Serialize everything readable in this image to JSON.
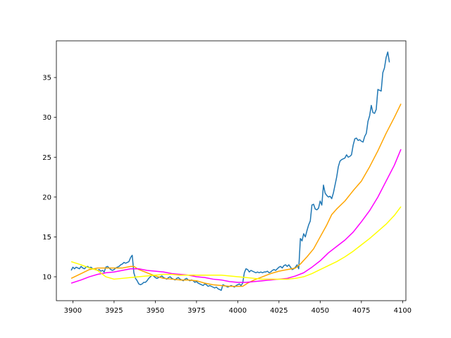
{
  "chart_data": {
    "type": "line",
    "title": "",
    "xlabel": "",
    "ylabel": "",
    "xlim": [
      3890,
      4102
    ],
    "ylim": [
      7,
      39.6
    ],
    "grid": false,
    "legend": "none",
    "x_ticks": [
      3900,
      3925,
      3950,
      3975,
      4000,
      4025,
      4050,
      4075,
      4100
    ],
    "y_ticks": [
      10,
      15,
      20,
      25,
      30,
      35
    ],
    "series": [
      {
        "color": "#1f77b4",
        "points": [
          [
            3899,
            10.8
          ],
          [
            3900,
            11.2
          ],
          [
            3901,
            11.0
          ],
          [
            3902,
            11.2
          ],
          [
            3903,
            11.1
          ],
          [
            3904,
            11.0
          ],
          [
            3905,
            11.3
          ],
          [
            3906,
            11.1
          ],
          [
            3907,
            11.0
          ],
          [
            3908,
            11.2
          ],
          [
            3909,
            11.3
          ],
          [
            3910,
            11.1
          ],
          [
            3911,
            11.2
          ],
          [
            3912,
            11.0
          ],
          [
            3913,
            11.0
          ],
          [
            3914,
            10.9
          ],
          [
            3915,
            10.8
          ],
          [
            3916,
            10.9
          ],
          [
            3917,
            10.7
          ],
          [
            3918,
            10.8
          ],
          [
            3919,
            10.6
          ],
          [
            3920,
            11.2
          ],
          [
            3921,
            11.3
          ],
          [
            3922,
            11.1
          ],
          [
            3923,
            10.9
          ],
          [
            3924,
            10.8
          ],
          [
            3925,
            10.9
          ],
          [
            3926,
            11.1
          ],
          [
            3927,
            11.2
          ],
          [
            3928,
            11.3
          ],
          [
            3929,
            11.5
          ],
          [
            3930,
            11.6
          ],
          [
            3931,
            11.8
          ],
          [
            3932,
            11.7
          ],
          [
            3933,
            11.8
          ],
          [
            3934,
            11.9
          ],
          [
            3935,
            12.4
          ],
          [
            3936,
            12.7
          ],
          [
            3937,
            10.5
          ],
          [
            3938,
            9.8
          ],
          [
            3939,
            9.5
          ],
          [
            3940,
            9.1
          ],
          [
            3941,
            9.0
          ],
          [
            3942,
            9.1
          ],
          [
            3943,
            9.3
          ],
          [
            3944,
            9.3
          ],
          [
            3945,
            9.5
          ],
          [
            3946,
            9.8
          ],
          [
            3947,
            10.0
          ],
          [
            3948,
            10.2
          ],
          [
            3949,
            10.1
          ],
          [
            3950,
            9.9
          ],
          [
            3951,
            9.8
          ],
          [
            3952,
            9.9
          ],
          [
            3953,
            10.0
          ],
          [
            3954,
            10.1
          ],
          [
            3955,
            9.9
          ],
          [
            3956,
            9.8
          ],
          [
            3957,
            9.7
          ],
          [
            3958,
            9.9
          ],
          [
            3959,
            10.0
          ],
          [
            3960,
            9.8
          ],
          [
            3961,
            9.7
          ],
          [
            3962,
            9.6
          ],
          [
            3963,
            9.8
          ],
          [
            3964,
            9.9
          ],
          [
            3965,
            9.7
          ],
          [
            3966,
            9.6
          ],
          [
            3967,
            9.5
          ],
          [
            3968,
            9.7
          ],
          [
            3969,
            9.8
          ],
          [
            3970,
            9.6
          ],
          [
            3971,
            9.5
          ],
          [
            3972,
            9.6
          ],
          [
            3973,
            9.5
          ],
          [
            3974,
            9.3
          ],
          [
            3975,
            9.4
          ],
          [
            3976,
            9.2
          ],
          [
            3977,
            9.1
          ],
          [
            3978,
            9.0
          ],
          [
            3979,
            8.9
          ],
          [
            3980,
            9.1
          ],
          [
            3981,
            9.0
          ],
          [
            3982,
            8.8
          ],
          [
            3983,
            8.9
          ],
          [
            3984,
            8.8
          ],
          [
            3985,
            8.7
          ],
          [
            3986,
            8.6
          ],
          [
            3987,
            8.7
          ],
          [
            3988,
            8.5
          ],
          [
            3989,
            8.4
          ],
          [
            3990,
            8.3
          ],
          [
            3991,
            9.0
          ],
          [
            3992,
            8.9
          ],
          [
            3993,
            8.8
          ],
          [
            3994,
            8.7
          ],
          [
            3995,
            8.8
          ],
          [
            3996,
            8.9
          ],
          [
            3997,
            8.8
          ],
          [
            3998,
            8.7
          ],
          [
            3999,
            8.9
          ],
          [
            4000,
            9.0
          ],
          [
            4001,
            9.1
          ],
          [
            4002,
            8.9
          ],
          [
            4003,
            9.2
          ],
          [
            4004,
            10.5
          ],
          [
            4005,
            11.0
          ],
          [
            4006,
            10.9
          ],
          [
            4007,
            10.6
          ],
          [
            4008,
            10.8
          ],
          [
            4009,
            10.7
          ],
          [
            4010,
            10.6
          ],
          [
            4011,
            10.5
          ],
          [
            4012,
            10.6
          ],
          [
            4013,
            10.5
          ],
          [
            4014,
            10.6
          ],
          [
            4015,
            10.5
          ],
          [
            4016,
            10.6
          ],
          [
            4017,
            10.6
          ],
          [
            4018,
            10.7
          ],
          [
            4019,
            10.5
          ],
          [
            4020,
            10.6
          ],
          [
            4021,
            10.8
          ],
          [
            4022,
            10.9
          ],
          [
            4023,
            10.8
          ],
          [
            4024,
            11.0
          ],
          [
            4025,
            11.2
          ],
          [
            4026,
            11.3
          ],
          [
            4027,
            11.1
          ],
          [
            4028,
            11.4
          ],
          [
            4029,
            11.5
          ],
          [
            4030,
            11.3
          ],
          [
            4031,
            11.5
          ],
          [
            4032,
            11.2
          ],
          [
            4033,
            10.9
          ],
          [
            4034,
            11.0
          ],
          [
            4035,
            11.2
          ],
          [
            4036,
            11.5
          ],
          [
            4037,
            11.0
          ],
          [
            4038,
            14.8
          ],
          [
            4039,
            14.5
          ],
          [
            4040,
            15.4
          ],
          [
            4041,
            15.0
          ],
          [
            4042,
            15.8
          ],
          [
            4043,
            16.5
          ],
          [
            4044,
            17.0
          ],
          [
            4045,
            19.0
          ],
          [
            4046,
            19.1
          ],
          [
            4047,
            18.5
          ],
          [
            4048,
            18.4
          ],
          [
            4049,
            18.6
          ],
          [
            4050,
            19.5
          ],
          [
            4051,
            19.0
          ],
          [
            4052,
            21.5
          ],
          [
            4053,
            20.5
          ],
          [
            4054,
            20.2
          ],
          [
            4055,
            20.0
          ],
          [
            4056,
            20.1
          ],
          [
            4057,
            19.8
          ],
          [
            4058,
            20.5
          ],
          [
            4059,
            21.5
          ],
          [
            4060,
            22.5
          ],
          [
            4061,
            23.8
          ],
          [
            4062,
            24.5
          ],
          [
            4063,
            24.7
          ],
          [
            4064,
            24.8
          ],
          [
            4065,
            24.9
          ],
          [
            4066,
            25.3
          ],
          [
            4067,
            25.0
          ],
          [
            4068,
            25.1
          ],
          [
            4069,
            25.3
          ],
          [
            4070,
            26.5
          ],
          [
            4071,
            27.3
          ],
          [
            4072,
            27.4
          ],
          [
            4073,
            27.1
          ],
          [
            4074,
            27.2
          ],
          [
            4075,
            27.0
          ],
          [
            4076,
            26.9
          ],
          [
            4077,
            27.6
          ],
          [
            4078,
            28.0
          ],
          [
            4079,
            29.5
          ],
          [
            4080,
            30.2
          ],
          [
            4081,
            31.5
          ],
          [
            4082,
            30.6
          ],
          [
            4083,
            30.5
          ],
          [
            4084,
            31.0
          ],
          [
            4085,
            33.5
          ],
          [
            4086,
            33.4
          ],
          [
            4087,
            33.3
          ],
          [
            4088,
            35.6
          ],
          [
            4089,
            36.2
          ],
          [
            4090,
            37.5
          ],
          [
            4091,
            38.2
          ],
          [
            4092,
            36.9
          ]
        ]
      },
      {
        "color": "#ffa500",
        "points": [
          [
            3899,
            9.8
          ],
          [
            3905,
            10.4
          ],
          [
            3910,
            10.9
          ],
          [
            3915,
            11.1
          ],
          [
            3920,
            11.1
          ],
          [
            3925,
            11.1
          ],
          [
            3930,
            11.1
          ],
          [
            3935,
            11.3
          ],
          [
            3937,
            11.3
          ],
          [
            3940,
            10.9
          ],
          [
            3945,
            10.5
          ],
          [
            3950,
            10.1
          ],
          [
            3955,
            9.8
          ],
          [
            3960,
            9.7
          ],
          [
            3965,
            9.6
          ],
          [
            3970,
            9.6
          ],
          [
            3975,
            9.5
          ],
          [
            3980,
            9.2
          ],
          [
            3985,
            9.0
          ],
          [
            3990,
            8.9
          ],
          [
            3995,
            8.8
          ],
          [
            4000,
            8.8
          ],
          [
            4003,
            8.8
          ],
          [
            4006,
            9.2
          ],
          [
            4010,
            9.6
          ],
          [
            4015,
            10.0
          ],
          [
            4020,
            10.4
          ],
          [
            4025,
            10.7
          ],
          [
            4030,
            10.9
          ],
          [
            4035,
            11.1
          ],
          [
            4038,
            11.6
          ],
          [
            4042,
            12.5
          ],
          [
            4046,
            13.5
          ],
          [
            4050,
            15.0
          ],
          [
            4054,
            16.5
          ],
          [
            4057,
            17.8
          ],
          [
            4060,
            18.5
          ],
          [
            4065,
            19.5
          ],
          [
            4070,
            20.8
          ],
          [
            4075,
            22.0
          ],
          [
            4080,
            23.8
          ],
          [
            4085,
            25.8
          ],
          [
            4090,
            28.0
          ],
          [
            4095,
            30.0
          ],
          [
            4099,
            31.7
          ]
        ]
      },
      {
        "color": "#ff00ff",
        "points": [
          [
            3899,
            9.2
          ],
          [
            3905,
            9.6
          ],
          [
            3910,
            10.0
          ],
          [
            3915,
            10.3
          ],
          [
            3920,
            10.5
          ],
          [
            3925,
            10.6
          ],
          [
            3930,
            10.8
          ],
          [
            3935,
            11.0
          ],
          [
            3940,
            11.0
          ],
          [
            3945,
            10.8
          ],
          [
            3950,
            10.7
          ],
          [
            3955,
            10.6
          ],
          [
            3960,
            10.4
          ],
          [
            3965,
            10.3
          ],
          [
            3970,
            10.2
          ],
          [
            3975,
            10.0
          ],
          [
            3980,
            9.9
          ],
          [
            3985,
            9.7
          ],
          [
            3990,
            9.6
          ],
          [
            3995,
            9.4
          ],
          [
            4000,
            9.3
          ],
          [
            4005,
            9.3
          ],
          [
            4010,
            9.4
          ],
          [
            4015,
            9.5
          ],
          [
            4020,
            9.6
          ],
          [
            4025,
            9.7
          ],
          [
            4030,
            9.8
          ],
          [
            4035,
            10.1
          ],
          [
            4040,
            10.5
          ],
          [
            4045,
            11.2
          ],
          [
            4050,
            12.0
          ],
          [
            4055,
            13.0
          ],
          [
            4060,
            13.8
          ],
          [
            4065,
            14.6
          ],
          [
            4070,
            15.6
          ],
          [
            4075,
            16.9
          ],
          [
            4080,
            18.3
          ],
          [
            4085,
            20.0
          ],
          [
            4090,
            22.0
          ],
          [
            4095,
            24.0
          ],
          [
            4099,
            26.0
          ]
        ]
      },
      {
        "color": "#ffff00",
        "points": [
          [
            3899,
            11.9
          ],
          [
            3905,
            11.5
          ],
          [
            3910,
            11.1
          ],
          [
            3915,
            10.8
          ],
          [
            3920,
            10.0
          ],
          [
            3925,
            9.7
          ],
          [
            3930,
            9.8
          ],
          [
            3935,
            9.9
          ],
          [
            3940,
            10.0
          ],
          [
            3945,
            10.1
          ],
          [
            3950,
            10.2
          ],
          [
            3955,
            10.3
          ],
          [
            3960,
            10.3
          ],
          [
            3965,
            10.2
          ],
          [
            3970,
            10.2
          ],
          [
            3975,
            10.2
          ],
          [
            3980,
            10.2
          ],
          [
            3985,
            10.2
          ],
          [
            3990,
            10.2
          ],
          [
            3995,
            10.1
          ],
          [
            4000,
            10.0
          ],
          [
            4005,
            9.9
          ],
          [
            4010,
            9.8
          ],
          [
            4015,
            9.7
          ],
          [
            4020,
            9.7
          ],
          [
            4025,
            9.7
          ],
          [
            4030,
            9.7
          ],
          [
            4035,
            9.8
          ],
          [
            4040,
            10.0
          ],
          [
            4045,
            10.4
          ],
          [
            4050,
            10.9
          ],
          [
            4055,
            11.4
          ],
          [
            4060,
            11.9
          ],
          [
            4065,
            12.5
          ],
          [
            4070,
            13.2
          ],
          [
            4075,
            14.0
          ],
          [
            4080,
            14.8
          ],
          [
            4085,
            15.7
          ],
          [
            4090,
            16.6
          ],
          [
            4095,
            17.7
          ],
          [
            4099,
            18.8
          ]
        ]
      }
    ]
  }
}
